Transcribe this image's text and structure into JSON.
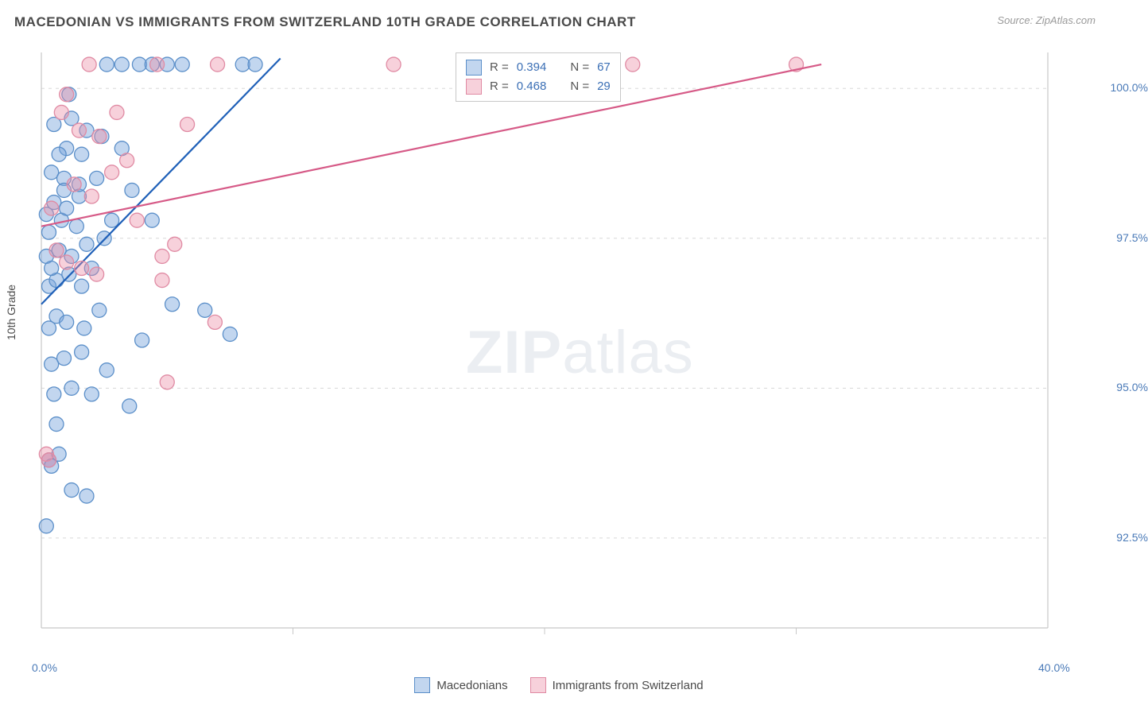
{
  "header": {
    "title": "MACEDONIAN VS IMMIGRANTS FROM SWITZERLAND 10TH GRADE CORRELATION CHART",
    "source_label": "Source:",
    "source_value": "ZipAtlas.com"
  },
  "axes": {
    "y_label": "10th Grade",
    "x_min": 0.0,
    "x_max": 40.0,
    "y_min": 91.0,
    "y_max": 100.6,
    "y_ticks": [
      {
        "v": 100.0,
        "label": "100.0%"
      },
      {
        "v": 97.5,
        "label": "97.5%"
      },
      {
        "v": 95.0,
        "label": "95.0%"
      },
      {
        "v": 92.5,
        "label": "92.5%"
      }
    ],
    "x_ticks": [
      {
        "v": 0.0,
        "label": "0.0%"
      },
      {
        "v": 40.0,
        "label": "40.0%"
      }
    ],
    "x_minor_ticks": [
      10.0,
      20.0,
      30.0
    ],
    "grid_color": "#d8d8d8",
    "axis_color": "#c8c8c8"
  },
  "watermark": {
    "zip": "ZIP",
    "atlas": "atlas"
  },
  "series": [
    {
      "id": "macedonians",
      "label": "Macedonians",
      "fill_color": "rgba(120,165,220,0.45)",
      "stroke_color": "#5b8fc9",
      "line_color": "#1f60b8",
      "marker_radius": 9,
      "R": "0.394",
      "N": "67",
      "trend": {
        "x1": 0.0,
        "y1": 96.4,
        "x2": 9.5,
        "y2": 100.5
      },
      "points": [
        [
          0.2,
          92.7
        ],
        [
          0.3,
          93.8
        ],
        [
          0.4,
          93.7
        ],
        [
          0.7,
          93.9
        ],
        [
          1.2,
          93.3
        ],
        [
          1.8,
          93.2
        ],
        [
          0.5,
          94.9
        ],
        [
          1.2,
          95.0
        ],
        [
          2.0,
          94.9
        ],
        [
          0.4,
          95.4
        ],
        [
          0.9,
          95.5
        ],
        [
          1.6,
          95.6
        ],
        [
          2.6,
          95.3
        ],
        [
          3.5,
          94.7
        ],
        [
          0.3,
          96.0
        ],
        [
          0.6,
          96.2
        ],
        [
          1.0,
          96.1
        ],
        [
          1.7,
          96.0
        ],
        [
          2.3,
          96.3
        ],
        [
          4.0,
          95.8
        ],
        [
          5.2,
          96.4
        ],
        [
          6.5,
          96.3
        ],
        [
          7.5,
          95.9
        ],
        [
          0.3,
          96.7
        ],
        [
          0.6,
          96.8
        ],
        [
          1.1,
          96.9
        ],
        [
          1.6,
          96.7
        ],
        [
          0.2,
          97.2
        ],
        [
          0.7,
          97.3
        ],
        [
          1.2,
          97.2
        ],
        [
          1.8,
          97.4
        ],
        [
          2.5,
          97.5
        ],
        [
          0.3,
          97.6
        ],
        [
          0.8,
          97.8
        ],
        [
          0.2,
          97.9
        ],
        [
          0.5,
          98.1
        ],
        [
          1.0,
          98.0
        ],
        [
          1.5,
          98.2
        ],
        [
          2.8,
          97.8
        ],
        [
          0.4,
          98.6
        ],
        [
          0.9,
          98.5
        ],
        [
          1.5,
          98.4
        ],
        [
          2.2,
          98.5
        ],
        [
          3.6,
          98.3
        ],
        [
          1.0,
          99.0
        ],
        [
          1.6,
          98.9
        ],
        [
          2.4,
          99.2
        ],
        [
          3.2,
          99.0
        ],
        [
          0.5,
          99.4
        ],
        [
          1.2,
          99.5
        ],
        [
          2.6,
          100.4
        ],
        [
          3.2,
          100.4
        ],
        [
          3.9,
          100.4
        ],
        [
          4.4,
          100.4
        ],
        [
          5.0,
          100.4
        ],
        [
          5.6,
          100.4
        ],
        [
          8.0,
          100.4
        ],
        [
          8.5,
          100.4
        ],
        [
          0.7,
          98.9
        ],
        [
          2.0,
          97.0
        ],
        [
          4.4,
          97.8
        ],
        [
          0.6,
          94.4
        ],
        [
          1.1,
          99.9
        ],
        [
          0.9,
          98.3
        ],
        [
          1.4,
          97.7
        ],
        [
          1.8,
          99.3
        ],
        [
          0.4,
          97.0
        ]
      ]
    },
    {
      "id": "swiss",
      "label": "Immigrants from Switzerland",
      "fill_color": "rgba(235,140,165,0.40)",
      "stroke_color": "#e08aa3",
      "line_color": "#d65a87",
      "marker_radius": 9,
      "R": "0.468",
      "N": "29",
      "trend": {
        "x1": 0.0,
        "y1": 97.7,
        "x2": 31.0,
        "y2": 100.4
      },
      "points": [
        [
          0.2,
          93.9
        ],
        [
          0.3,
          93.8
        ],
        [
          0.6,
          97.3
        ],
        [
          1.0,
          97.1
        ],
        [
          1.6,
          97.0
        ],
        [
          2.2,
          96.9
        ],
        [
          1.3,
          98.4
        ],
        [
          2.0,
          98.2
        ],
        [
          2.8,
          98.6
        ],
        [
          3.4,
          98.8
        ],
        [
          1.5,
          99.3
        ],
        [
          2.3,
          99.2
        ],
        [
          0.8,
          99.6
        ],
        [
          1.9,
          100.4
        ],
        [
          4.6,
          100.4
        ],
        [
          5.8,
          99.4
        ],
        [
          6.9,
          96.1
        ],
        [
          4.8,
          96.8
        ],
        [
          3.0,
          99.6
        ],
        [
          7.0,
          100.4
        ],
        [
          0.4,
          98.0
        ],
        [
          1.0,
          99.9
        ],
        [
          3.8,
          97.8
        ],
        [
          4.8,
          97.2
        ],
        [
          5.3,
          97.4
        ],
        [
          14.0,
          100.4
        ],
        [
          23.5,
          100.4
        ],
        [
          30.0,
          100.4
        ],
        [
          5.0,
          95.1
        ]
      ]
    }
  ],
  "legend_box": {
    "r_label": "R =",
    "n_label": "N ="
  },
  "colors": {
    "title_color": "#4a4a4a",
    "value_color": "#3b6fb5",
    "r_label_color": "#555555"
  }
}
